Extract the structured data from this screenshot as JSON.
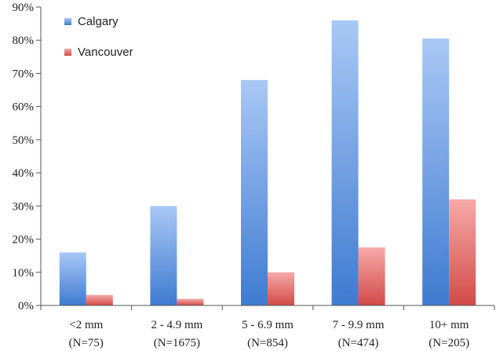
{
  "chart_data": {
    "type": "bar",
    "categories": [
      {
        "label": "<2 mm",
        "sublabel": "(N=75)"
      },
      {
        "label": "2 - 4.9 mm",
        "sublabel": "(N=1675)"
      },
      {
        "label": "5 - 6.9 mm",
        "sublabel": "(N=854)"
      },
      {
        "label": "7 - 9.9 mm",
        "sublabel": "(N=474)"
      },
      {
        "label": "10+ mm",
        "sublabel": "(N=205)"
      }
    ],
    "series": [
      {
        "name": "Calgary",
        "values": [
          16,
          30,
          68,
          86,
          80.5
        ],
        "color_light": "#a9c8f5",
        "color_dark": "#3f7bd1"
      },
      {
        "name": "Vancouver",
        "values": [
          3.2,
          2,
          10,
          17.5,
          32
        ],
        "color_light": "#f6aaa8",
        "color_dark": "#d24a48"
      }
    ],
    "title": "",
    "xlabel": "",
    "ylabel": "",
    "ylim": [
      0,
      90
    ],
    "yticks": [
      "0%",
      "10%",
      "20%",
      "30%",
      "40%",
      "50%",
      "60%",
      "70%",
      "80%",
      "90%"
    ],
    "grid": false,
    "legend": "top-left"
  }
}
